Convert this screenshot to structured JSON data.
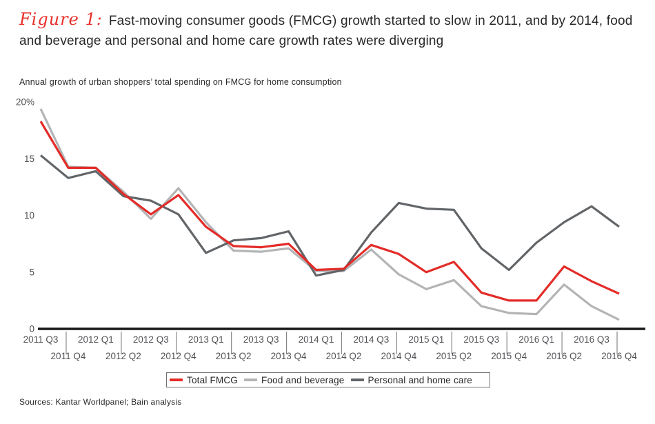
{
  "header": {
    "figure_label": "Figure 1:",
    "title": "Fast-moving consumer goods (FMCG) growth started to slow in 2011, and by 2014, food and beverage and personal and home care growth rates were diverging",
    "subtitle": "Annual growth of urban shoppers’ total spending on FMCG for home consumption"
  },
  "chart_data": {
    "type": "line",
    "categories": [
      "2011 Q3",
      "2011 Q4",
      "2012 Q1",
      "2012 Q2",
      "2012 Q3",
      "2012 Q4",
      "2013 Q1",
      "2013 Q2",
      "2013 Q3",
      "2013 Q4",
      "2014 Q1",
      "2014 Q2",
      "2014 Q3",
      "2014 Q4",
      "2015 Q1",
      "2015 Q2",
      "2015 Q3",
      "2015 Q4",
      "2016 Q1",
      "2016 Q2",
      "2016 Q3",
      "2016 Q4"
    ],
    "series": [
      {
        "name": "Total FMCG",
        "color": "#e32b28",
        "values": [
          18.3,
          14.2,
          14.2,
          11.9,
          10.1,
          11.8,
          9.0,
          7.3,
          7.2,
          7.5,
          5.2,
          5.3,
          7.4,
          6.6,
          5.0,
          5.9,
          3.2,
          2.5,
          2.5,
          5.5,
          4.2,
          3.1
        ]
      },
      {
        "name": "Food and beverage",
        "color": "#b2b4b6",
        "values": [
          19.4,
          14.3,
          14.2,
          12.1,
          9.7,
          12.4,
          9.4,
          6.9,
          6.8,
          7.1,
          5.1,
          5.1,
          7.0,
          4.8,
          3.5,
          4.3,
          2.0,
          1.4,
          1.3,
          3.9,
          2.0,
          0.8
        ]
      },
      {
        "name": "Personal and home care",
        "color": "#626568",
        "values": [
          15.3,
          13.3,
          13.9,
          11.7,
          11.3,
          10.1,
          6.7,
          7.8,
          8.0,
          8.6,
          4.7,
          5.2,
          8.5,
          11.1,
          10.6,
          10.5,
          7.1,
          5.2,
          7.6,
          9.4,
          10.8,
          9.0
        ]
      }
    ],
    "title": "",
    "xlabel": "",
    "ylabel": "",
    "ylim": [
      0,
      20
    ],
    "y_ticks": [
      {
        "label": "20%",
        "value": 20
      },
      {
        "label": "15",
        "value": 15
      },
      {
        "label": "10",
        "value": 10
      },
      {
        "label": "5",
        "value": 5
      },
      {
        "label": "0",
        "value": 0
      }
    ],
    "grid": false,
    "legend_position": "bottom"
  },
  "sources": "Sources: Kantar Worldpanel; Bain analysis"
}
